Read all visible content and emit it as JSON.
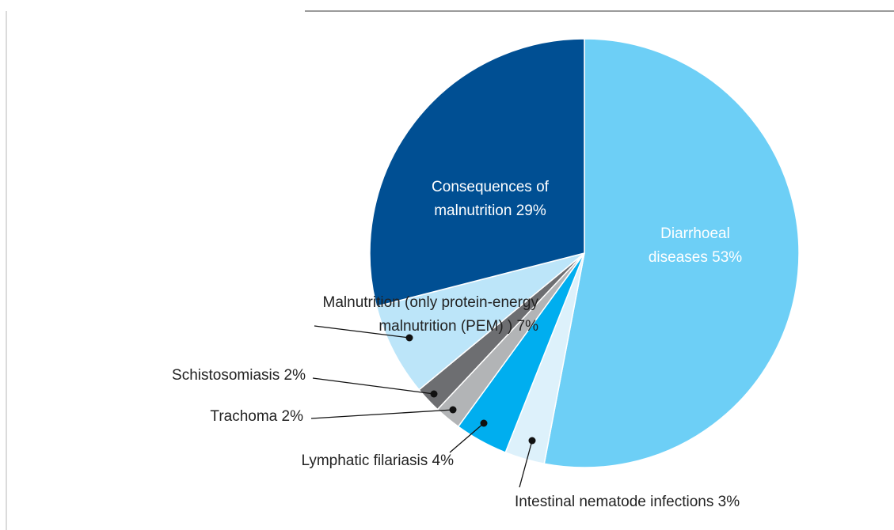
{
  "chart_data": {
    "type": "pie",
    "categories": [
      "Diarrhoeal diseases",
      "Intestinal nematode infections",
      "Lymphatic filariasis",
      "Trachoma",
      "Schistosomiasis",
      "Malnutrition (only protein-energy malnutrition (PEM) )",
      "Consequences of malnutrition"
    ],
    "values": [
      53,
      3,
      4,
      2,
      2,
      7,
      29
    ],
    "value_labels": [
      "53%",
      "3%",
      "4%",
      "2%",
      "2%",
      "7%",
      "29%"
    ],
    "colors": [
      "#6dcff6",
      "#ddf1fb",
      "#00aeef",
      "#b2b4b6",
      "#6d6e71",
      "#bce5f9",
      "#004f93"
    ]
  }
}
